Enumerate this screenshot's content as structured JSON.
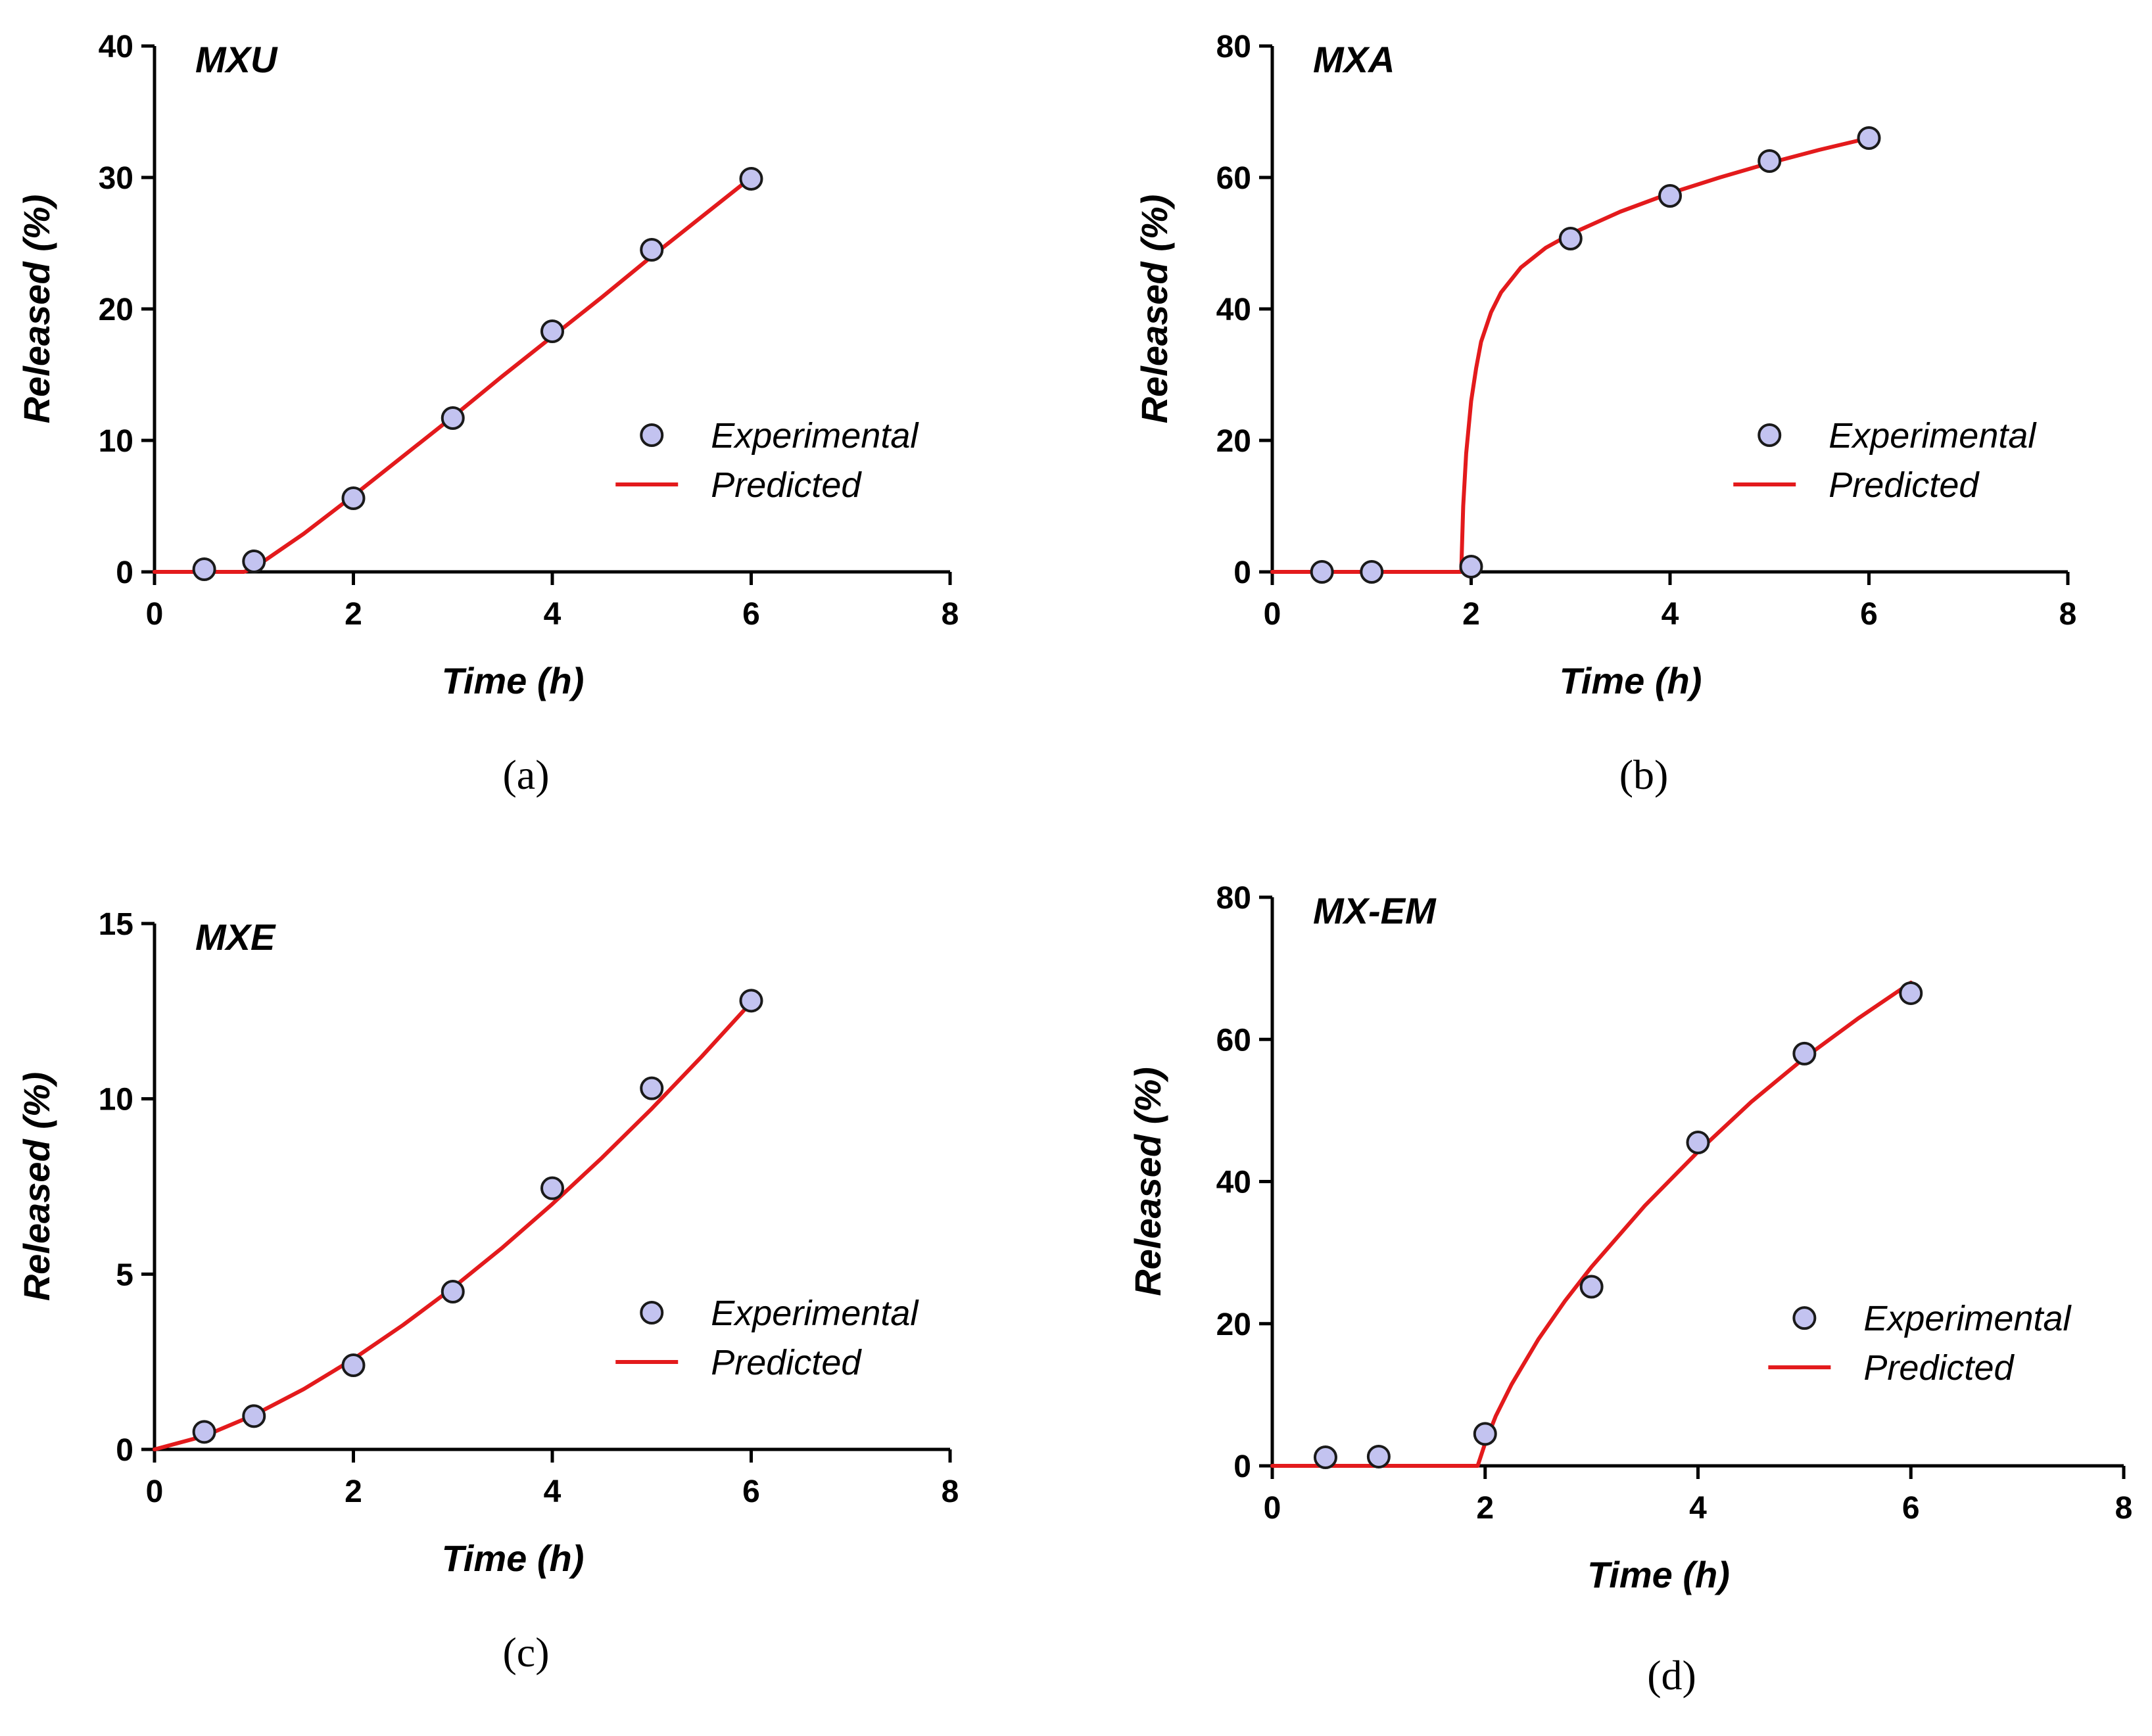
{
  "figure": {
    "colors": {
      "axis": "#000000",
      "predicted_line": "#e31a1c",
      "marker_fill": "#c3c3f0",
      "marker_stroke": "#1a1a1a",
      "background": "#ffffff"
    }
  },
  "chart_data": [
    {
      "type": "scatter",
      "panel_label": "(a)",
      "title": "MXU",
      "xlabel": "Time (h)",
      "ylabel": "Released (%)",
      "xlim": [
        0,
        8
      ],
      "ylim": [
        0,
        40
      ],
      "xticks": [
        "0",
        "2",
        "4",
        "6",
        "8"
      ],
      "yticks": [
        "0",
        "10",
        "20",
        "30",
        "40"
      ],
      "legend": {
        "position": "right-middle",
        "entries": [
          "Experimental",
          "Predicted"
        ]
      },
      "series": [
        {
          "name": "Experimental",
          "kind": "scatter",
          "x": [
            0.5,
            1,
            2,
            3,
            4,
            5,
            6
          ],
          "y": [
            0.2,
            0.8,
            5.6,
            11.7,
            18.3,
            24.5,
            29.9
          ]
        },
        {
          "name": "Predicted",
          "kind": "line",
          "x": [
            0,
            0.5,
            0.9,
            1.0,
            1.5,
            2,
            2.5,
            3,
            3.5,
            4,
            4.5,
            5,
            5.5,
            6
          ],
          "y": [
            0,
            0,
            0,
            0.3,
            2.9,
            5.8,
            8.8,
            11.8,
            14.9,
            17.9,
            20.9,
            24.0,
            27.0,
            30.0
          ]
        }
      ]
    },
    {
      "type": "scatter",
      "panel_label": "(b)",
      "title": "MXA",
      "xlabel": "Time (h)",
      "ylabel": "Released (%)",
      "xlim": [
        0,
        8
      ],
      "ylim": [
        0,
        80
      ],
      "xticks": [
        "0",
        "2",
        "4",
        "6",
        "8"
      ],
      "yticks": [
        "0",
        "20",
        "40",
        "60",
        "80"
      ],
      "legend": {
        "position": "right-middle",
        "entries": [
          "Experimental",
          "Predicted"
        ]
      },
      "series": [
        {
          "name": "Experimental",
          "kind": "scatter",
          "x": [
            0.5,
            1,
            2,
            3,
            4,
            5,
            6
          ],
          "y": [
            0,
            0,
            0.8,
            50.7,
            57.2,
            62.5,
            66.0
          ]
        },
        {
          "name": "Predicted",
          "kind": "line",
          "x": [
            0,
            1.9,
            1.92,
            1.95,
            2.0,
            2.05,
            2.1,
            2.2,
            2.3,
            2.5,
            2.75,
            3.0,
            3.5,
            4.0,
            4.5,
            5.0,
            5.5,
            6.0
          ],
          "y": [
            0,
            0,
            10,
            18,
            26,
            31,
            35,
            39.5,
            42.5,
            46.3,
            49.3,
            51.4,
            54.8,
            57.6,
            60.0,
            62.2,
            64.2,
            66.0
          ]
        }
      ]
    },
    {
      "type": "scatter",
      "panel_label": "(c)",
      "title": "MXE",
      "xlabel": "Time (h)",
      "ylabel": "Released (%)",
      "xlim": [
        0,
        8
      ],
      "ylim": [
        0,
        15
      ],
      "xticks": [
        "0",
        "2",
        "4",
        "6",
        "8"
      ],
      "yticks": [
        "0",
        "5",
        "10",
        "15"
      ],
      "legend": {
        "position": "right-middle",
        "entries": [
          "Experimental",
          "Predicted"
        ]
      },
      "series": [
        {
          "name": "Experimental",
          "kind": "scatter",
          "x": [
            0.5,
            1,
            2,
            3,
            4,
            5,
            6
          ],
          "y": [
            0.5,
            0.95,
            2.4,
            4.5,
            7.45,
            10.3,
            12.8
          ]
        },
        {
          "name": "Predicted",
          "kind": "line",
          "x": [
            0,
            0.5,
            1,
            1.5,
            2,
            2.5,
            3,
            3.5,
            4,
            4.5,
            5,
            5.5,
            6
          ],
          "y": [
            0,
            0.38,
            0.98,
            1.72,
            2.58,
            3.55,
            4.61,
            5.76,
            7.0,
            8.32,
            9.72,
            11.2,
            12.75
          ]
        }
      ]
    },
    {
      "type": "scatter",
      "panel_label": "(d)",
      "title": "MX-EM",
      "xlabel": "Time (h)",
      "ylabel": "Released (%)",
      "xlim": [
        0,
        8
      ],
      "ylim": [
        0,
        80
      ],
      "xticks": [
        "0",
        "2",
        "4",
        "6",
        "8"
      ],
      "yticks": [
        "0",
        "20",
        "40",
        "60",
        "80"
      ],
      "legend": {
        "position": "right-middle",
        "entries": [
          "Experimental",
          "Predicted"
        ]
      },
      "series": [
        {
          "name": "Experimental",
          "kind": "scatter",
          "x": [
            0.5,
            1,
            2,
            3,
            4,
            5,
            6
          ],
          "y": [
            1.2,
            1.3,
            4.5,
            25.2,
            45.5,
            58.0,
            66.5
          ]
        },
        {
          "name": "Predicted",
          "kind": "line",
          "x": [
            0,
            1.93,
            2.0,
            2.1,
            2.25,
            2.5,
            2.75,
            3.0,
            3.5,
            4.0,
            4.5,
            5.0,
            5.5,
            6.0
          ],
          "y": [
            0,
            0,
            3.2,
            7.0,
            11.5,
            17.8,
            23.2,
            28.0,
            36.6,
            44.2,
            51.2,
            57.4,
            62.9,
            68.0
          ]
        }
      ]
    }
  ]
}
